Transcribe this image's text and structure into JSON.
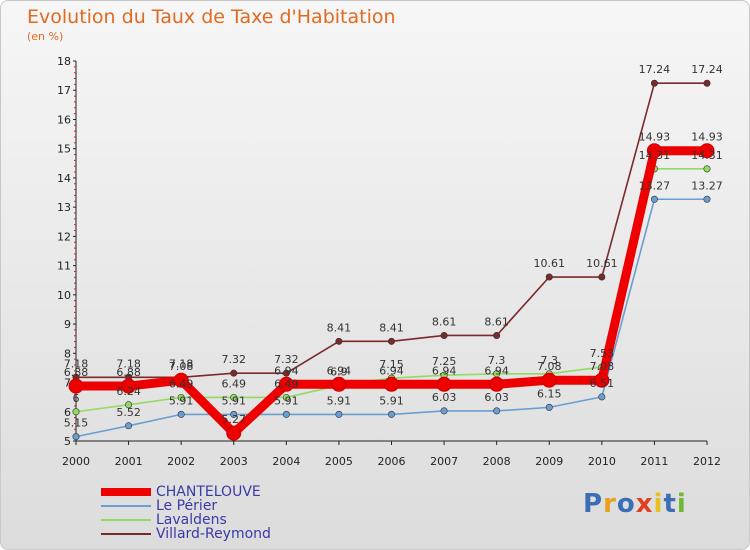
{
  "title": "Evolution du Taux de Taxe d'Habitation",
  "subtitle": "(en %)",
  "brand": {
    "letters": [
      "P",
      "r",
      "o",
      "x",
      "i",
      "t",
      "i"
    ],
    "colors": [
      "#3a6fb6",
      "#e8a020",
      "#3a6fb6",
      "#e04020",
      "#e8c020",
      "#3a6fb6",
      "#70b830"
    ]
  },
  "chart_data": {
    "type": "line",
    "title": "Evolution du Taux de Taxe d'Habitation",
    "ylabel": "(en %)",
    "xlabel": "",
    "ylim": [
      5,
      18
    ],
    "yticks": [
      "5",
      "6",
      "7",
      "8",
      "9",
      "10",
      "11",
      "12",
      "13",
      "14",
      "15",
      "16",
      "17",
      "18"
    ],
    "x": [
      "2000",
      "2001",
      "2002",
      "2003",
      "2004",
      "2005",
      "2006",
      "2007",
      "2008",
      "2009",
      "2010",
      "2011",
      "2012"
    ],
    "grid": false,
    "legend": "bottom-left",
    "series": [
      {
        "name": "CHANTELOUVE",
        "color": "#ee0000",
        "values": [
          6.88,
          6.88,
          7.08,
          5.27,
          6.94,
          6.94,
          6.94,
          6.94,
          6.94,
          7.08,
          7.08,
          14.93,
          14.93
        ],
        "labels": [
          "6.88",
          "6.88",
          "7.08",
          "5.27",
          "6.94",
          "6.94",
          "6.94",
          "6.94",
          "6.94",
          "7.08",
          "7.08",
          "14.93",
          "14.93"
        ]
      },
      {
        "name": "Le Périer",
        "color": "#6a9ed0",
        "values": [
          5.15,
          5.52,
          5.91,
          5.91,
          5.91,
          5.91,
          5.91,
          6.03,
          6.03,
          6.15,
          6.51,
          13.27,
          13.27
        ],
        "labels": [
          "5.15",
          "5.52",
          "5.91",
          "5.91",
          "5.91",
          "5.91",
          "5.91",
          "6.03",
          "6.03",
          "6.15",
          "6.51",
          "13.27",
          "13.27"
        ]
      },
      {
        "name": "Lavaldens",
        "color": "#90dc60",
        "values": [
          6,
          6.24,
          6.49,
          6.49,
          6.49,
          6.9,
          7.15,
          7.25,
          7.3,
          7.3,
          7.53,
          14.31,
          14.31
        ],
        "labels": [
          "6",
          "6.24",
          "6.49",
          "6.49",
          "6.49",
          "6.9",
          "7.15",
          "7.25",
          "7.3",
          "7.3",
          "7.53",
          "14.31",
          "14.31"
        ]
      },
      {
        "name": "Villard-Reymond",
        "color": "#7a2a2a",
        "values": [
          7.18,
          7.18,
          7.18,
          7.32,
          7.32,
          8.41,
          8.41,
          8.61,
          8.61,
          10.61,
          10.61,
          17.24,
          17.24
        ],
        "labels": [
          "7.18",
          "7.18",
          "7.18",
          "7.32",
          "7.32",
          "8.41",
          "8.41",
          "8.61",
          "8.61",
          "10.61",
          "10.61",
          "17.24",
          "17.24"
        ]
      }
    ]
  }
}
